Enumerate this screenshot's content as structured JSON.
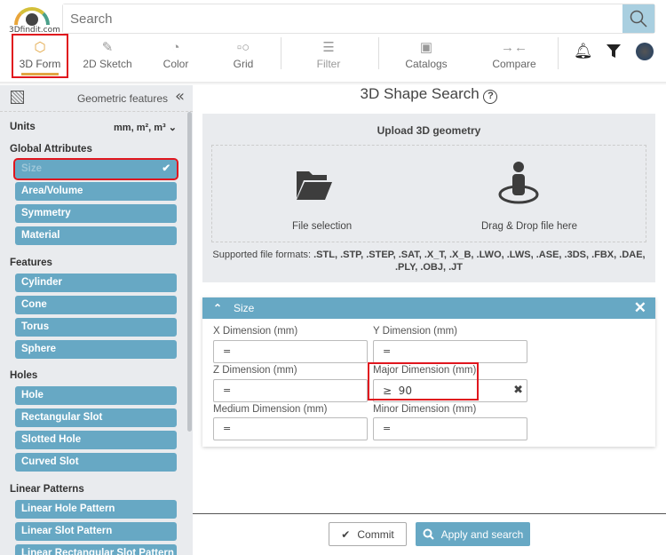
{
  "logo": {
    "text": "3Dfindit.com"
  },
  "search": {
    "placeholder": "Search"
  },
  "nav": [
    {
      "label": "3D Form",
      "icon": "cube-icon",
      "active": true
    },
    {
      "label": "2D Sketch",
      "icon": "pencil-icon"
    },
    {
      "label": "Color",
      "icon": "palette-icon"
    },
    {
      "label": "Grid",
      "icon": "grid-shapes-icon"
    },
    {
      "label": "Filter",
      "icon": "sliders-icon"
    },
    {
      "label": "Catalogs",
      "icon": "catalog-icon"
    },
    {
      "label": "Compare",
      "icon": "compare-arrows-icon"
    }
  ],
  "sidebar": {
    "title": "Geometric features",
    "units_label": "Units",
    "units_value": "mm, m², m³",
    "sections": [
      {
        "title": "Global Attributes",
        "items": [
          "Size",
          "Area/Volume",
          "Symmetry",
          "Material"
        ]
      },
      {
        "title": "Features",
        "items": [
          "Cylinder",
          "Cone",
          "Torus",
          "Sphere"
        ]
      },
      {
        "title": "Holes",
        "items": [
          "Hole",
          "Rectangular Slot",
          "Slotted Hole",
          "Curved Slot"
        ]
      },
      {
        "title": "Linear Patterns",
        "items": [
          "Linear Hole Pattern",
          "Linear Slot Pattern",
          "Linear Rectangular Slot Pattern"
        ]
      }
    ],
    "selected": "Size"
  },
  "main": {
    "title": "3D Shape Search",
    "upload": {
      "title": "Upload 3D geometry",
      "file_selection": "File selection",
      "drag_drop": "Drag & Drop file here",
      "formats_label": "Supported file formats:",
      "formats": ".STL, .STP, .STEP, .SAT, .X_T, .X_B, .LWO, .LWS, .ASE, .3DS, .FBX, .DAE, .PLY, .OBJ, .JT"
    },
    "size": {
      "title": "Size",
      "fields": [
        {
          "label": "X Dimension (mm)",
          "value": "="
        },
        {
          "label": "Y Dimension (mm)",
          "value": "="
        },
        {
          "label": "Z Dimension (mm)",
          "value": "="
        },
        {
          "label": "Major Dimension (mm)",
          "value": "≥  90"
        },
        {
          "label": "Medium Dimension (mm)",
          "value": "="
        },
        {
          "label": "Minor Dimension (mm)",
          "value": "="
        }
      ]
    }
  },
  "footer": {
    "commit": "Commit",
    "apply": "Apply and search"
  },
  "colors": {
    "accent": "#67a8c4",
    "active": "#e2a644",
    "highlight": "#e0161e",
    "panel": "#e9ebee"
  }
}
